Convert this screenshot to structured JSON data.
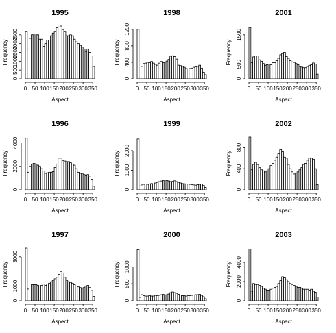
{
  "chart_data": [
    {
      "type": "bar",
      "title": "1995",
      "xlabel": "Aspect",
      "ylabel": "Frequency",
      "xlim": [
        0,
        360
      ],
      "ylim": [
        0,
        3000
      ],
      "x_ticks": [
        0,
        50,
        100,
        150,
        200,
        250,
        300,
        350
      ],
      "y_ticks": [
        0,
        500,
        1000,
        1500,
        2000,
        2500
      ],
      "y_tick_labels": [
        "0",
        "500",
        "1000",
        "1500",
        "2000",
        "2500"
      ],
      "bin_width": 10,
      "bin_starts": [
        0,
        10,
        20,
        30,
        40,
        50,
        60,
        70,
        80,
        90,
        100,
        110,
        120,
        130,
        140,
        150,
        160,
        170,
        180,
        190,
        200,
        210,
        220,
        230,
        240,
        250,
        260,
        270,
        280,
        290,
        300,
        310,
        320,
        330,
        340,
        350
      ],
      "values": [
        2700,
        1700,
        2300,
        2500,
        2550,
        2550,
        2500,
        2250,
        2250,
        1850,
        2000,
        2200,
        2200,
        2450,
        2600,
        2700,
        2900,
        2950,
        3000,
        2800,
        2700,
        2450,
        2450,
        2500,
        2450,
        2250,
        2100,
        2000,
        1900,
        1800,
        1700,
        1550,
        1700,
        1500,
        1300,
        700
      ]
    },
    {
      "type": "bar",
      "title": "1998",
      "xlabel": "Aspect",
      "ylabel": "Frequency",
      "xlim": [
        0,
        360
      ],
      "ylim": [
        0,
        1280
      ],
      "x_ticks": [
        0,
        50,
        100,
        150,
        200,
        250,
        300,
        350
      ],
      "y_ticks": [
        0,
        400,
        800,
        1200
      ],
      "y_tick_labels": [
        "0",
        "400",
        "800",
        "1200"
      ],
      "bin_width": 10,
      "bin_starts": [
        0,
        10,
        20,
        30,
        40,
        50,
        60,
        70,
        80,
        90,
        100,
        110,
        120,
        130,
        140,
        150,
        160,
        170,
        180,
        190,
        200,
        210,
        220,
        230,
        240,
        250,
        260,
        270,
        280,
        290,
        300,
        310,
        320,
        330,
        340,
        350
      ],
      "values": [
        1200,
        240,
        300,
        370,
        380,
        400,
        390,
        420,
        380,
        350,
        330,
        380,
        420,
        390,
        400,
        430,
        470,
        550,
        560,
        540,
        480,
        330,
        320,
        300,
        280,
        250,
        240,
        250,
        260,
        280,
        290,
        300,
        330,
        260,
        160,
        100
      ]
    },
    {
      "type": "bar",
      "title": "2001",
      "xlabel": "Aspect",
      "ylabel": "Frequency",
      "xlim": [
        0,
        360
      ],
      "ylim": [
        0,
        1800
      ],
      "x_ticks": [
        0,
        50,
        100,
        150,
        200,
        250,
        300,
        350
      ],
      "y_ticks": [
        0,
        500,
        1500
      ],
      "y_tick_labels": [
        "0",
        "500",
        "1500"
      ],
      "bin_width": 10,
      "bin_starts": [
        0,
        10,
        20,
        30,
        40,
        50,
        60,
        70,
        80,
        90,
        100,
        110,
        120,
        130,
        140,
        150,
        160,
        170,
        180,
        190,
        200,
        210,
        220,
        230,
        240,
        250,
        260,
        270,
        280,
        290,
        300,
        310,
        320,
        330,
        340,
        350
      ],
      "values": [
        1750,
        550,
        750,
        780,
        780,
        650,
        600,
        520,
        460,
        480,
        500,
        480,
        550,
        550,
        620,
        700,
        820,
        860,
        900,
        760,
        700,
        620,
        580,
        560,
        520,
        480,
        420,
        400,
        380,
        380,
        420,
        460,
        480,
        540,
        500,
        160
      ]
    },
    {
      "type": "bar",
      "title": "1996",
      "xlabel": "Aspect",
      "ylabel": "Frequency",
      "xlim": [
        0,
        360
      ],
      "ylim": [
        0,
        4500
      ],
      "x_ticks": [
        0,
        50,
        100,
        150,
        200,
        250,
        300,
        350
      ],
      "y_ticks": [
        0,
        2000,
        4000
      ],
      "y_tick_labels": [
        "0",
        "2000",
        "4000"
      ],
      "bin_width": 10,
      "bin_starts": [
        0,
        10,
        20,
        30,
        40,
        50,
        60,
        70,
        80,
        90,
        100,
        110,
        120,
        130,
        140,
        150,
        160,
        170,
        180,
        190,
        200,
        210,
        220,
        230,
        240,
        250,
        260,
        270,
        280,
        290,
        300,
        310,
        320,
        330,
        340,
        350
      ],
      "values": [
        4400,
        1500,
        2000,
        2200,
        2250,
        2200,
        2100,
        2000,
        1800,
        1600,
        1400,
        1450,
        1500,
        1500,
        1550,
        1900,
        2200,
        2700,
        2700,
        2500,
        2450,
        2400,
        2400,
        2300,
        2200,
        2100,
        1800,
        1500,
        1400,
        1400,
        1300,
        1200,
        1300,
        1100,
        900,
        300
      ]
    },
    {
      "type": "bar",
      "title": "1999",
      "xlabel": "Aspect",
      "ylabel": "Frequency",
      "xlim": [
        0,
        360
      ],
      "ylim": [
        0,
        2700
      ],
      "x_ticks": [
        0,
        50,
        100,
        150,
        200,
        250,
        300,
        350
      ],
      "y_ticks": [
        0,
        1000,
        2000
      ],
      "y_tick_labels": [
        "0",
        "1000",
        "2000"
      ],
      "bin_width": 10,
      "bin_starts": [
        0,
        10,
        20,
        30,
        40,
        50,
        60,
        70,
        80,
        90,
        100,
        110,
        120,
        130,
        140,
        150,
        160,
        170,
        180,
        190,
        200,
        210,
        220,
        230,
        240,
        250,
        260,
        270,
        280,
        290,
        300,
        310,
        320,
        330,
        340,
        350
      ],
      "values": [
        2600,
        200,
        250,
        280,
        300,
        280,
        300,
        320,
        300,
        350,
        380,
        420,
        450,
        480,
        500,
        480,
        450,
        420,
        430,
        460,
        420,
        380,
        350,
        320,
        310,
        300,
        290,
        280,
        260,
        250,
        240,
        260,
        280,
        300,
        220,
        120
      ]
    },
    {
      "type": "bar",
      "title": "2002",
      "xlabel": "Aspect",
      "ylabel": "Frequency",
      "xlim": [
        0,
        360
      ],
      "ylim": [
        0,
        1000
      ],
      "x_ticks": [
        0,
        50,
        100,
        150,
        200,
        250,
        300,
        350
      ],
      "y_ticks": [
        0,
        400,
        800
      ],
      "y_tick_labels": [
        "0",
        "400",
        "800"
      ],
      "bin_width": 10,
      "bin_starts": [
        0,
        10,
        20,
        30,
        40,
        50,
        60,
        70,
        80,
        90,
        100,
        110,
        120,
        130,
        140,
        150,
        160,
        170,
        180,
        190,
        200,
        210,
        220,
        230,
        240,
        250,
        260,
        270,
        280,
        290,
        300,
        310,
        320,
        330,
        340,
        350
      ],
      "values": [
        1000,
        380,
        480,
        520,
        480,
        420,
        380,
        360,
        340,
        360,
        400,
        460,
        500,
        560,
        620,
        680,
        760,
        720,
        620,
        600,
        480,
        400,
        340,
        300,
        320,
        340,
        380,
        420,
        480,
        500,
        560,
        600,
        600,
        580,
        400,
        100
      ]
    },
    {
      "type": "bar",
      "title": "1997",
      "xlabel": "Aspect",
      "ylabel": "Frequency",
      "xlim": [
        0,
        360
      ],
      "ylim": [
        0,
        3600
      ],
      "x_ticks": [
        0,
        50,
        100,
        150,
        200,
        250,
        300,
        350
      ],
      "y_ticks": [
        0,
        1000,
        3000
      ],
      "y_tick_labels": [
        "0",
        "1000",
        "3000"
      ],
      "bin_width": 10,
      "bin_starts": [
        0,
        10,
        20,
        30,
        40,
        50,
        60,
        70,
        80,
        90,
        100,
        110,
        120,
        130,
        140,
        150,
        160,
        170,
        180,
        190,
        200,
        210,
        220,
        230,
        240,
        250,
        260,
        270,
        280,
        290,
        300,
        310,
        320,
        330,
        340,
        350
      ],
      "values": [
        3600,
        800,
        1000,
        1100,
        1100,
        1100,
        1050,
        1000,
        1050,
        1150,
        1050,
        1150,
        1200,
        1300,
        1400,
        1500,
        1600,
        1800,
        2000,
        1900,
        1600,
        1400,
        1300,
        1250,
        1200,
        1100,
        1000,
        950,
        900,
        850,
        900,
        1000,
        1050,
        900,
        700,
        300
      ]
    },
    {
      "type": "bar",
      "title": "2000",
      "xlabel": "Aspect",
      "ylabel": "Frequency",
      "xlim": [
        0,
        360
      ],
      "ylim": [
        0,
        1550
      ],
      "x_ticks": [
        0,
        50,
        100,
        150,
        200,
        250,
        300,
        350
      ],
      "y_ticks": [
        0,
        500,
        1000
      ],
      "y_tick_labels": [
        "0",
        "500",
        "1000"
      ],
      "bin_width": 10,
      "bin_starts": [
        0,
        10,
        20,
        30,
        40,
        50,
        60,
        70,
        80,
        90,
        100,
        110,
        120,
        130,
        140,
        150,
        160,
        170,
        180,
        190,
        200,
        210,
        220,
        230,
        240,
        250,
        260,
        270,
        280,
        290,
        300,
        310,
        320,
        330,
        340,
        350
      ],
      "values": [
        1500,
        100,
        180,
        150,
        140,
        140,
        150,
        140,
        140,
        160,
        150,
        160,
        180,
        190,
        170,
        180,
        200,
        240,
        260,
        240,
        220,
        190,
        170,
        150,
        150,
        140,
        150,
        150,
        160,
        170,
        180,
        180,
        190,
        160,
        120,
        60
      ]
    },
    {
      "type": "bar",
      "title": "2003",
      "xlabel": "Aspect",
      "ylabel": "Frequency",
      "xlim": [
        0,
        360
      ],
      "ylim": [
        0,
        5500
      ],
      "x_ticks": [
        0,
        50,
        100,
        150,
        200,
        250,
        300,
        350
      ],
      "y_ticks": [
        0,
        2000,
        4000
      ],
      "y_tick_labels": [
        "0",
        "2000",
        "4000"
      ],
      "bin_width": 10,
      "bin_starts": [
        0,
        10,
        20,
        30,
        40,
        50,
        60,
        70,
        80,
        90,
        100,
        110,
        120,
        130,
        140,
        150,
        160,
        170,
        180,
        190,
        200,
        210,
        220,
        230,
        240,
        250,
        260,
        270,
        280,
        290,
        300,
        310,
        320,
        330,
        340,
        350
      ],
      "values": [
        5400,
        1000,
        1800,
        1700,
        1700,
        1600,
        1500,
        1300,
        1200,
        1100,
        1100,
        1200,
        1300,
        1400,
        1500,
        1800,
        2100,
        2500,
        2400,
        2200,
        2000,
        1800,
        1700,
        1600,
        1500,
        1400,
        1400,
        1300,
        1200,
        1200,
        1200,
        1100,
        1200,
        1000,
        900,
        400
      ]
    }
  ]
}
